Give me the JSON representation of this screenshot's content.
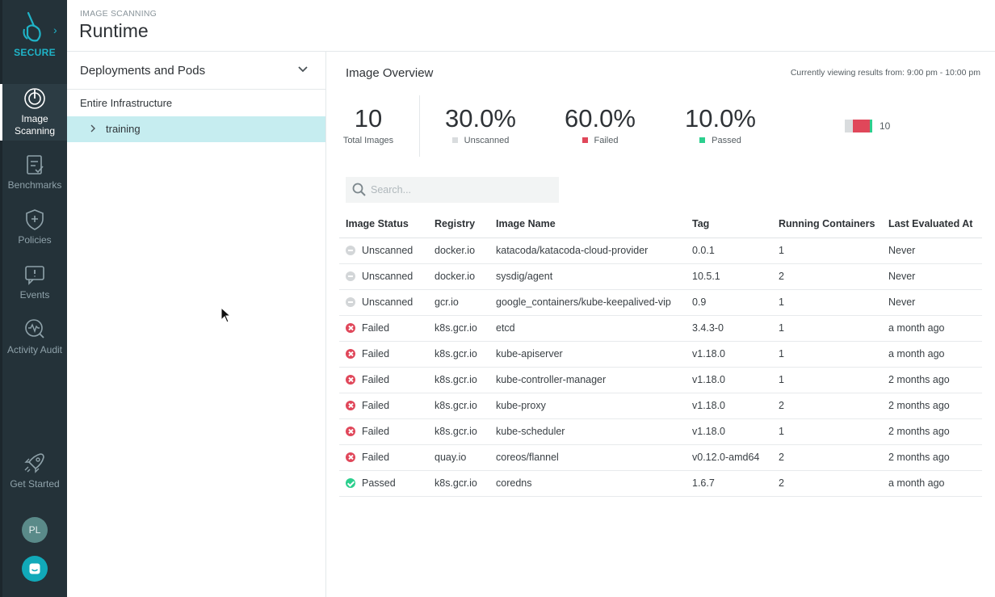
{
  "nav": {
    "brand_label": "SECURE",
    "items": [
      {
        "label": "Image Scanning",
        "icon": "image-scanning-icon",
        "active": true
      },
      {
        "label": "Benchmarks",
        "icon": "benchmarks-icon"
      },
      {
        "label": "Policies",
        "icon": "policies-icon"
      },
      {
        "label": "Events",
        "icon": "events-icon"
      },
      {
        "label": "Activity Audit",
        "icon": "activity-audit-icon"
      }
    ],
    "get_started": "Get Started",
    "avatar_initials": "PL"
  },
  "header": {
    "breadcrumb": "IMAGE SCANNING",
    "title": "Runtime"
  },
  "tree": {
    "selector_label": "Deployments and Pods",
    "root": "Entire Infrastructure",
    "selected_node": "training"
  },
  "overview": {
    "title": "Image Overview",
    "range_text": "Currently viewing results from: 9:00 pm - 10:00 pm",
    "total": {
      "value": "10",
      "label": "Total Images"
    },
    "unscanned": {
      "value": "30.0%",
      "label": "Unscanned",
      "color": "#d9dcde"
    },
    "failed": {
      "value": "60.0%",
      "label": "Failed",
      "color": "#e0475a"
    },
    "passed": {
      "value": "10.0%",
      "label": "Passed",
      "color": "#2ccf8e"
    },
    "mini_count": "10"
  },
  "search": {
    "placeholder": "Search..."
  },
  "table": {
    "headers": [
      "Image Status",
      "Registry",
      "Image Name",
      "Tag",
      "Running Containers",
      "Last Evaluated At"
    ],
    "rows": [
      {
        "status": "Unscanned",
        "kind": "unscanned",
        "registry": "docker.io",
        "name": "katacoda/katacoda-cloud-provider",
        "tag": "0.0.1",
        "containers": "1",
        "evaluated": "Never"
      },
      {
        "status": "Unscanned",
        "kind": "unscanned",
        "registry": "docker.io",
        "name": "sysdig/agent",
        "tag": "10.5.1",
        "containers": "2",
        "evaluated": "Never"
      },
      {
        "status": "Unscanned",
        "kind": "unscanned",
        "registry": "gcr.io",
        "name": "google_containers/kube-keepalived-vip",
        "tag": "0.9",
        "containers": "1",
        "evaluated": "Never"
      },
      {
        "status": "Failed",
        "kind": "failed",
        "registry": "k8s.gcr.io",
        "name": "etcd",
        "tag": "3.4.3-0",
        "containers": "1",
        "evaluated": "a month ago"
      },
      {
        "status": "Failed",
        "kind": "failed",
        "registry": "k8s.gcr.io",
        "name": "kube-apiserver",
        "tag": "v1.18.0",
        "containers": "1",
        "evaluated": "a month ago"
      },
      {
        "status": "Failed",
        "kind": "failed",
        "registry": "k8s.gcr.io",
        "name": "kube-controller-manager",
        "tag": "v1.18.0",
        "containers": "1",
        "evaluated": "2 months ago"
      },
      {
        "status": "Failed",
        "kind": "failed",
        "registry": "k8s.gcr.io",
        "name": "kube-proxy",
        "tag": "v1.18.0",
        "containers": "2",
        "evaluated": "2 months ago"
      },
      {
        "status": "Failed",
        "kind": "failed",
        "registry": "k8s.gcr.io",
        "name": "kube-scheduler",
        "tag": "v1.18.0",
        "containers": "1",
        "evaluated": "2 months ago"
      },
      {
        "status": "Failed",
        "kind": "failed",
        "registry": "quay.io",
        "name": "coreos/flannel",
        "tag": "v0.12.0-amd64",
        "containers": "2",
        "evaluated": "2 months ago"
      },
      {
        "status": "Passed",
        "kind": "passed",
        "registry": "k8s.gcr.io",
        "name": "coredns",
        "tag": "1.6.7",
        "containers": "2",
        "evaluated": "a month ago"
      }
    ]
  }
}
